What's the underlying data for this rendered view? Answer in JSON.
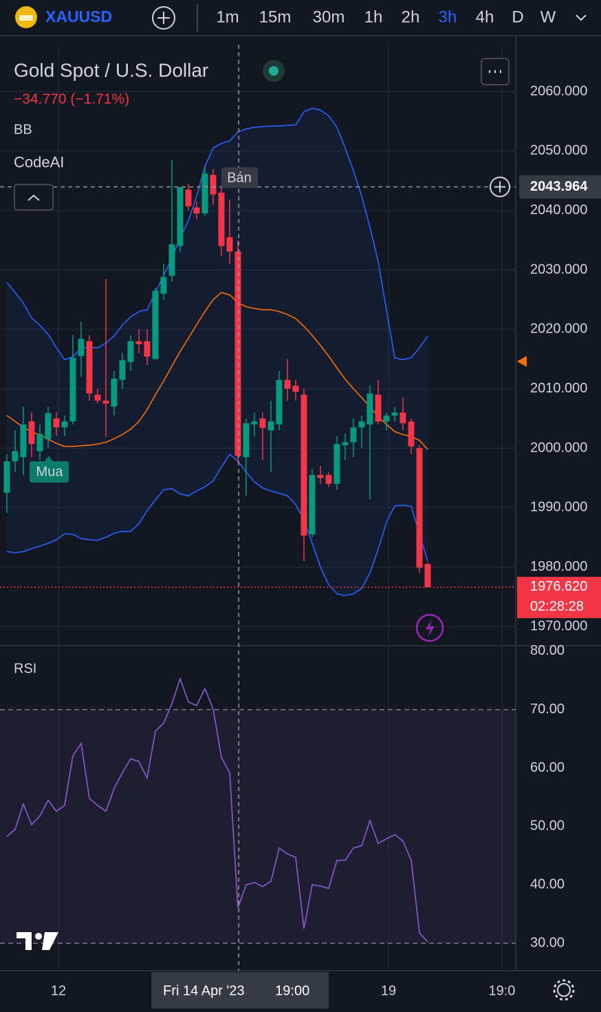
{
  "toolbar": {
    "symbol": "XAUUSD",
    "intervals": [
      "1m",
      "15m",
      "30m",
      "1h",
      "2h",
      "3h",
      "4h",
      "D",
      "W"
    ],
    "active_interval": "3h"
  },
  "chart_data": [
    {
      "type": "candlestick",
      "title": "Gold Spot / U.S. Dollar",
      "subtitle": "−34.770 (−1.71%)",
      "indicators": [
        "BB",
        "CodeAI"
      ],
      "up_color": "#089981",
      "down_color": "#f23645",
      "open": [
        1992.5,
        1997.8,
        1998.5,
        2004.5,
        1999.5,
        2001.5,
        2005,
        2003.5,
        2004.5,
        2015.5,
        2018,
        2009,
        2008,
        2007,
        2011.5,
        2014.5,
        2018,
        2018,
        2015,
        2026,
        2029,
        2034,
        2043.5,
        2040.5,
        2039.5,
        2046,
        2043,
        2035.5,
        2033.1,
        1998.5,
        2004,
        2005,
        2003,
        2004,
        2011.5,
        2010.5,
        2009,
        1985.5,
        1995.5,
        1995.5,
        1994,
        2000.5,
        2001,
        2003.5,
        2004,
        2009,
        2004.5,
        2005.5,
        2006,
        2004.5,
        2000,
        1980.5
      ],
      "high": [
        1999,
        2003,
        2007,
        2006,
        2004,
        2007,
        2006,
        2005.5,
        2019,
        2021.3,
        2019,
        2010,
        2028.5,
        2013,
        2016,
        2019,
        2020,
        2020,
        2027,
        2031,
        2048.5,
        2044,
        2044.5,
        2041.5,
        2047.5,
        2047,
        2044,
        2041.8,
        2035,
        2005,
        2006,
        2006,
        2008,
        2013,
        2015,
        2011.5,
        2010,
        1996.5,
        1997,
        1996,
        2002,
        2002.5,
        2005,
        2005.5,
        2010.5,
        2011.5,
        2006,
        2007,
        2008.5,
        2005,
        2000.5,
        1980.8
      ],
      "low": [
        1989.1,
        1996,
        1995.5,
        1998.5,
        1998,
        2000,
        2002,
        2002,
        2004,
        2012,
        2008,
        2007.5,
        2001.9,
        2005.5,
        2010,
        2013,
        2016,
        2014,
        2015,
        2025,
        2028,
        2033,
        2040,
        2038.5,
        2039,
        2041,
        2032.3,
        2031,
        1997.5,
        1992,
        2002,
        1998,
        1996,
        2003,
        2008,
        2008,
        1981,
        1985,
        1994,
        1993.5,
        1993,
        1998,
        1998.5,
        2000,
        1991.4,
        2004,
        2003,
        2004.5,
        2003,
        1999,
        1979,
        1976.6
      ],
      "close": [
        1997.8,
        1999.5,
        2004,
        2000.7,
        2002.4,
        2005.9,
        2003.5,
        2004.5,
        2015.2,
        2018.4,
        2009.2,
        2008,
        2007.5,
        2011.7,
        2014.8,
        2018,
        2017.5,
        2015.4,
        2026.5,
        2028.8,
        2034.3,
        2043.9,
        2040.7,
        2039.5,
        2046.2,
        2042.7,
        2034,
        2033.1,
        1998.7,
        2004.2,
        2004.5,
        2003.4,
        2004.5,
        2011.5,
        2010,
        2009.5,
        1985.3,
        1995.5,
        1995,
        1994,
        2000.7,
        2001,
        2003.5,
        2004.5,
        2009.2,
        2004.5,
        2005.5,
        2006,
        2004.2,
        2000.3,
        1979.9,
        1976.62
      ],
      "overlays": [
        {
          "color": "#2962ff",
          "values": [
            2027.9,
            2026.2,
            2024.4,
            2021.9,
            2020.7,
            2019.2,
            2016.9,
            2014.9,
            2015.4,
            2016.9,
            2016.9,
            2016.9,
            2017.7,
            2018.9,
            2020.7,
            2022.1,
            2023,
            2023.3,
            2026.2,
            2029.1,
            2032,
            2035.4,
            2038.3,
            2042.4,
            2047.4,
            2050.5,
            2051.3,
            2051.7,
            2053.2,
            2053.7,
            2054,
            2054.1,
            2054.2,
            2054.2,
            2054.3,
            2054.4,
            2056.6,
            2057.2,
            2056.9,
            2055.9,
            2054,
            2050.5,
            2046.7,
            2042.4,
            2037.2,
            2031.4,
            2023.3,
            2015.2,
            2014.9,
            2015.2,
            2016.9,
            2018.9
          ]
        },
        {
          "color": "#ff6d00",
          "values": [
            2005.5,
            2004.5,
            2003.5,
            2002.8,
            2002.2,
            2001.5,
            2000.8,
            2000.3,
            2000.3,
            2000.4,
            2000.5,
            2000.7,
            2001,
            2001.6,
            2002.3,
            2003.2,
            2004.5,
            2006.5,
            2009,
            2011.3,
            2013.8,
            2016.3,
            2018.5,
            2020.8,
            2023,
            2025,
            2026.2,
            2025.8,
            2024.5,
            2023.8,
            2023.5,
            2023.3,
            2023.3,
            2023,
            2022.5,
            2021.8,
            2020.5,
            2019,
            2017.3,
            2015.5,
            2013.5,
            2011.6,
            2010,
            2008.5,
            2007,
            2005.3,
            2004,
            2002.8,
            2002.3,
            2002,
            2001.3,
            1999.8
          ]
        },
        {
          "color": "#2962ff",
          "values": [
            1982.6,
            1982.4,
            1982.6,
            1983.1,
            1983.5,
            1984,
            1984.6,
            1985.6,
            1985.5,
            1984.8,
            1984.6,
            1984.5,
            1985,
            1985.7,
            1986,
            1986,
            1987.3,
            1989.5,
            1991.3,
            1993,
            1993.2,
            1992.3,
            1992,
            1992.8,
            1993.5,
            1994.5,
            1996.8,
            1999,
            1997.8,
            1996,
            1994.3,
            1993.3,
            1992.8,
            1992.4,
            1992,
            1990.5,
            1988,
            1984,
            1980,
            1977,
            1975.5,
            1975.2,
            1975.5,
            1976.4,
            1979,
            1983,
            1987.5,
            1990.3,
            1990.4,
            1990.2,
            1985.5,
            1981
          ]
        }
      ],
      "sell_label": "Bán",
      "buy_label": "Mua",
      "xlim": [
        -0.83,
        61.67
      ],
      "xticks": [
        {
          "value": 6.25,
          "label": "12"
        },
        {
          "value": 46.25,
          "label": "19"
        },
        {
          "value": 60,
          "label": "19:0"
        }
      ],
      "ylim": [
        1966.76,
        2067.88
      ],
      "yticks": [
        {
          "value": 1970,
          "label": "1970.000"
        },
        {
          "value": 1980,
          "label": "1980.000"
        },
        {
          "value": 1990,
          "label": "1990.000"
        },
        {
          "value": 2000,
          "label": "2000.000"
        },
        {
          "value": 2010,
          "label": "2010.000"
        },
        {
          "value": 2020,
          "label": "2020.000"
        },
        {
          "value": 2030,
          "label": "2030.000"
        },
        {
          "value": 2040,
          "label": "2040.000"
        },
        {
          "value": 2050,
          "label": "2050.000"
        },
        {
          "value": 2060,
          "label": "2060.000"
        }
      ],
      "grid": true,
      "crosshair": {
        "x": 28.1,
        "date": "Fri 14 Apr '23",
        "time": "19:00",
        "y": {
          "value": 2043.964,
          "label": "2043.964"
        }
      },
      "last_price": {
        "value": 1976.62,
        "label": "1976.620"
      },
      "countdown": "02:28:28"
    },
    {
      "type": "line",
      "title": "RSI",
      "color": "#7e57c2",
      "values": [
        48.3,
        49.5,
        53.8,
        50.3,
        51.8,
        54.5,
        52.6,
        53.6,
        62.1,
        64.2,
        54.8,
        53.6,
        52.6,
        56.5,
        59.2,
        61.6,
        61.1,
        58.3,
        66.3,
        67.7,
        71,
        75.3,
        71.3,
        70.7,
        73.6,
        70.1,
        61.8,
        59.2,
        36.1,
        40,
        40.4,
        39.7,
        40.6,
        46.3,
        45.3,
        44.7,
        32.5,
        40,
        39.8,
        39.4,
        44.2,
        44.2,
        46.3,
        46.7,
        51,
        47.1,
        47.9,
        48.6,
        47.5,
        44.2,
        31.8,
        30.2
      ],
      "bands": [
        70,
        30
      ],
      "ylim": [
        25.3,
        80.7
      ],
      "yticks": [
        {
          "value": 30,
          "label": "30.00"
        },
        {
          "value": 40,
          "label": "40.00"
        },
        {
          "value": 50,
          "label": "50.00"
        },
        {
          "value": 60,
          "label": "60.00"
        },
        {
          "value": 70,
          "label": "70.00"
        },
        {
          "value": 80,
          "label": "80.00"
        }
      ]
    }
  ]
}
